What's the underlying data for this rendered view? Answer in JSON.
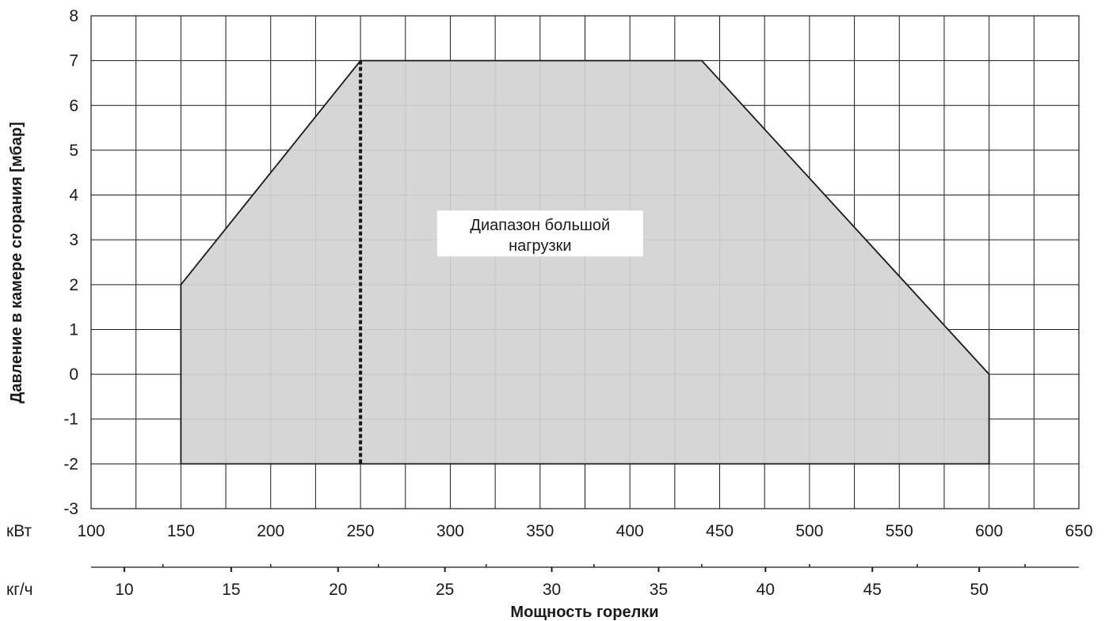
{
  "chart_data": {
    "type": "area",
    "title": "",
    "xlabel": "Мощность горелки",
    "ylabel": "Давление в камере сгорания [мбар]",
    "x_unit_primary": "кВт",
    "x_unit_secondary": "кг/ч",
    "xlim": [
      100,
      650
    ],
    "ylim": [
      -3,
      8
    ],
    "grid": true,
    "x_ticks": [
      100,
      150,
      200,
      250,
      300,
      350,
      400,
      450,
      500,
      550,
      600,
      650
    ],
    "y_ticks": [
      8,
      7,
      6,
      5,
      4,
      3,
      2,
      1,
      0,
      -1,
      -2,
      -3
    ],
    "secondary_x_ticks": [
      10,
      15,
      20,
      25,
      30,
      35,
      40,
      45,
      50
    ],
    "secondary_x_kw_equivalent": [
      118.5,
      178,
      237.5,
      297,
      356.5,
      416,
      475.5,
      535,
      594.5
    ],
    "secondary_minor_kw": [
      140,
      200,
      260,
      320,
      380,
      440,
      500,
      560,
      620
    ],
    "region": {
      "label": "Диапазон большой нагрузки",
      "label_lines": [
        "Диапазон большой",
        "нагрузки"
      ],
      "fill_color": "#d3d3d3",
      "outline_color": "#1a1a1a",
      "polygon": [
        {
          "x": 150,
          "y": -2
        },
        {
          "x": 150,
          "y": 2
        },
        {
          "x": 250,
          "y": 7
        },
        {
          "x": 440,
          "y": 7
        },
        {
          "x": 600,
          "y": 0
        },
        {
          "x": 600,
          "y": -2
        }
      ]
    },
    "dashed_line": {
      "x": 250,
      "y_from": -2,
      "y_to": 7
    },
    "annotation_at": {
      "x": 350,
      "y": 3
    }
  }
}
